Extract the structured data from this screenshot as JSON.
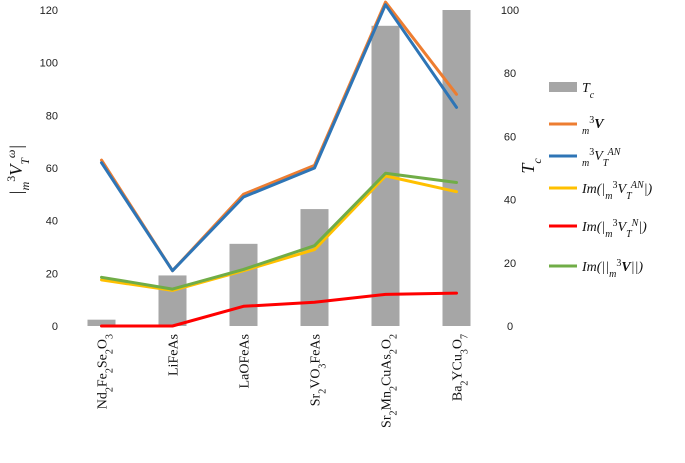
{
  "chart_data": {
    "type": "bar",
    "categories_html": [
      "Nd<tspan baseline-shift=\"sub\" font-size=\"10\">2</tspan>Fe<tspan baseline-shift=\"sub\" font-size=\"10\">2</tspan>Se<tspan baseline-shift=\"sub\" font-size=\"10\">2</tspan>O<tspan baseline-shift=\"sub\" font-size=\"10\">3</tspan>",
      "LiFeAs",
      "LaOFeAs",
      "Sr<tspan baseline-shift=\"sub\" font-size=\"10\">2</tspan>VO<tspan baseline-shift=\"sub\" font-size=\"10\">3</tspan>FeAs",
      "Sr<tspan baseline-shift=\"sub\" font-size=\"10\">2</tspan>Mn<tspan baseline-shift=\"sub\" font-size=\"10\">2</tspan>CuAs<tspan baseline-shift=\"sub\" font-size=\"10\">2</tspan>O<tspan baseline-shift=\"sub\" font-size=\"10\">2</tspan>",
      "Ba<tspan baseline-shift=\"sub\" font-size=\"10\">2</tspan>YCu<tspan baseline-shift=\"sub\" font-size=\"10\">3</tspan>O<tspan baseline-shift=\"sub\" font-size=\"10\">7</tspan>"
    ],
    "categories": [
      "Nd2Fe2Se2O3",
      "LiFeAs",
      "LaOFeAs",
      "Sr2VO3FeAs",
      "Sr2Mn2CuAs2O2",
      "Ba2YCu3O7"
    ],
    "left_axis": {
      "ylim": [
        0,
        120
      ],
      "ticks": [
        0,
        20,
        40,
        60,
        80,
        100,
        120
      ],
      "label": "|m3VTω|"
    },
    "right_axis": {
      "ylim": [
        0,
        100
      ],
      "ticks": [
        0,
        20,
        40,
        60,
        80,
        100
      ],
      "label": "Tc"
    },
    "bars": {
      "name": "Tc",
      "axis": "right",
      "color": "#a6a6a6",
      "values": [
        2,
        16,
        26,
        37,
        95,
        100
      ]
    },
    "series": [
      {
        "name": "m3V",
        "color": "#ed7d31",
        "values": [
          63,
          21,
          50,
          61,
          123,
          88
        ]
      },
      {
        "name": "m3VTAN",
        "color": "#2e75b6",
        "values": [
          62,
          21,
          49,
          60,
          122,
          83
        ]
      },
      {
        "name": "Im(|m3VTAN|)",
        "color": "#ffc000",
        "values": [
          17.5,
          13.5,
          21,
          29,
          57,
          51
        ]
      },
      {
        "name": "Im(|m3VTN|)",
        "color": "#ff0000",
        "values": [
          0,
          0,
          7.5,
          9,
          12,
          12.5
        ]
      },
      {
        "name": "Im(||m3V||)",
        "color": "#70ad47",
        "values": [
          18.5,
          14,
          21.5,
          30.5,
          58,
          54.5
        ]
      }
    ],
    "legend_placement": "right",
    "grid": false
  }
}
